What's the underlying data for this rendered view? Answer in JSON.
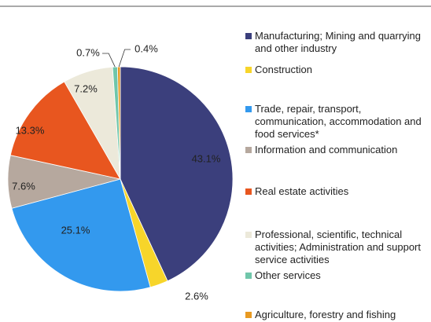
{
  "chart_data": {
    "type": "pie",
    "categories": [
      "Manufacturing; Mining and quarrying and other industry",
      "Construction",
      "Trade, repair, transport, communication, accommodation and food services*",
      "Information and communication",
      "Real estate activities",
      "Professional, scientific, technical activities; Administration and support service activities",
      "Other services",
      "Agriculture, forestry and fishing"
    ],
    "values": [
      43.1,
      2.6,
      25.1,
      7.6,
      13.3,
      7.2,
      0.7,
      0.4
    ],
    "value_labels": [
      "43.1%",
      "2.6%",
      "25.1%",
      "7.6%",
      "13.3%",
      "7.2%",
      "0.7%",
      "0.4%"
    ],
    "colors": [
      "#3b3f7c",
      "#f7d52a",
      "#3399ee",
      "#b6a89e",
      "#e8561f",
      "#ece9da",
      "#70c6aa",
      "#e89a22"
    ]
  }
}
